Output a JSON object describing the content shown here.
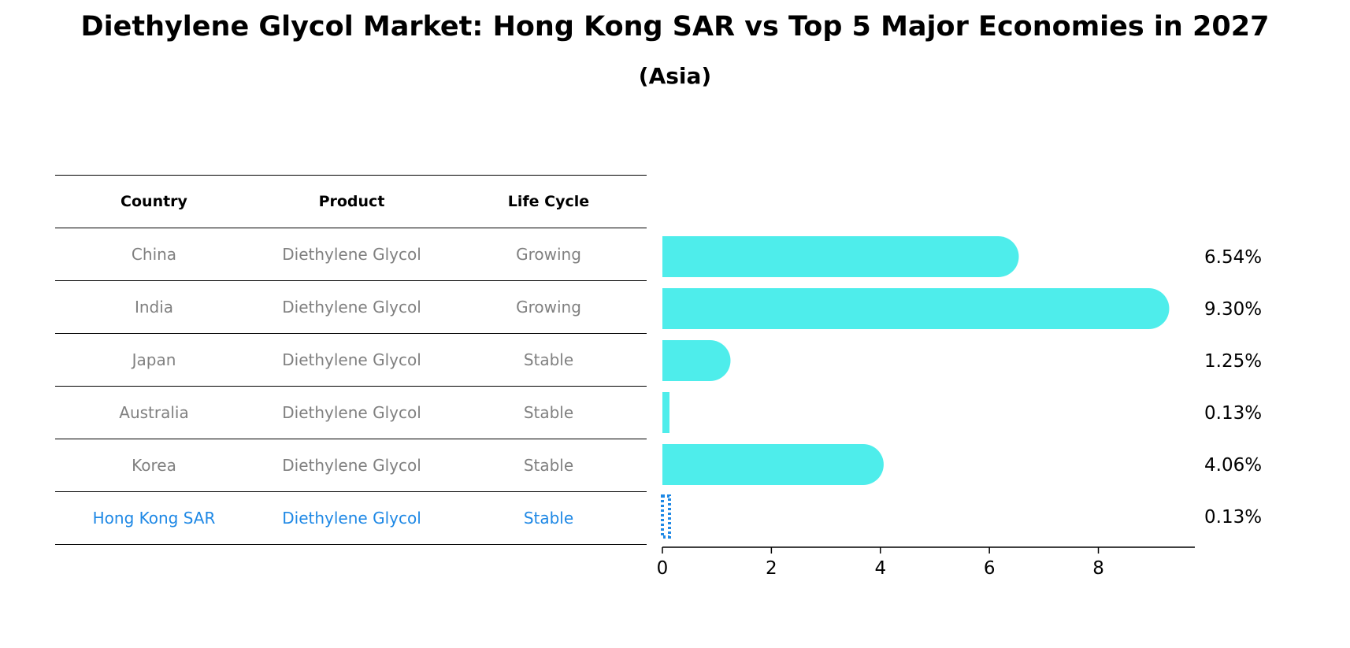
{
  "title": "Diethylene Glycol Market: Hong Kong SAR vs Top 5 Major Economies in 2027",
  "subtitle": "(Asia)",
  "colors": {
    "bar": "#4EEDEB",
    "highlight": "#1E88E5",
    "row_text": "#808080"
  },
  "table": {
    "headers": [
      "Country",
      "Product",
      "Life Cycle"
    ],
    "rows": [
      {
        "country": "China",
        "product": "Diethylene Glycol",
        "life_cycle": "Growing"
      },
      {
        "country": "India",
        "product": "Diethylene Glycol",
        "life_cycle": "Growing"
      },
      {
        "country": "Japan",
        "product": "Diethylene Glycol",
        "life_cycle": "Stable"
      },
      {
        "country": "Australia",
        "product": "Diethylene Glycol",
        "life_cycle": "Stable"
      },
      {
        "country": "Korea",
        "product": "Diethylene Glycol",
        "life_cycle": "Stable"
      },
      {
        "country": "Hong Kong SAR",
        "product": "Diethylene Glycol",
        "life_cycle": "Stable"
      }
    ]
  },
  "chart_data": {
    "type": "bar",
    "orientation": "horizontal",
    "categories": [
      "China",
      "India",
      "Japan",
      "Australia",
      "Korea",
      "Hong Kong SAR"
    ],
    "values": [
      6.54,
      9.3,
      1.25,
      0.13,
      4.06,
      0.13
    ],
    "value_labels": [
      "6.54%",
      "9.30%",
      "1.25%",
      "0.13%",
      "4.06%",
      "0.13%"
    ],
    "highlight": "Hong Kong SAR",
    "xlim": [
      0,
      9.77
    ],
    "xticks": [
      0,
      2,
      4,
      6,
      8
    ],
    "xtick_labels": [
      "0",
      "2",
      "4",
      "6",
      "8"
    ],
    "grid": false,
    "legend": "none"
  }
}
